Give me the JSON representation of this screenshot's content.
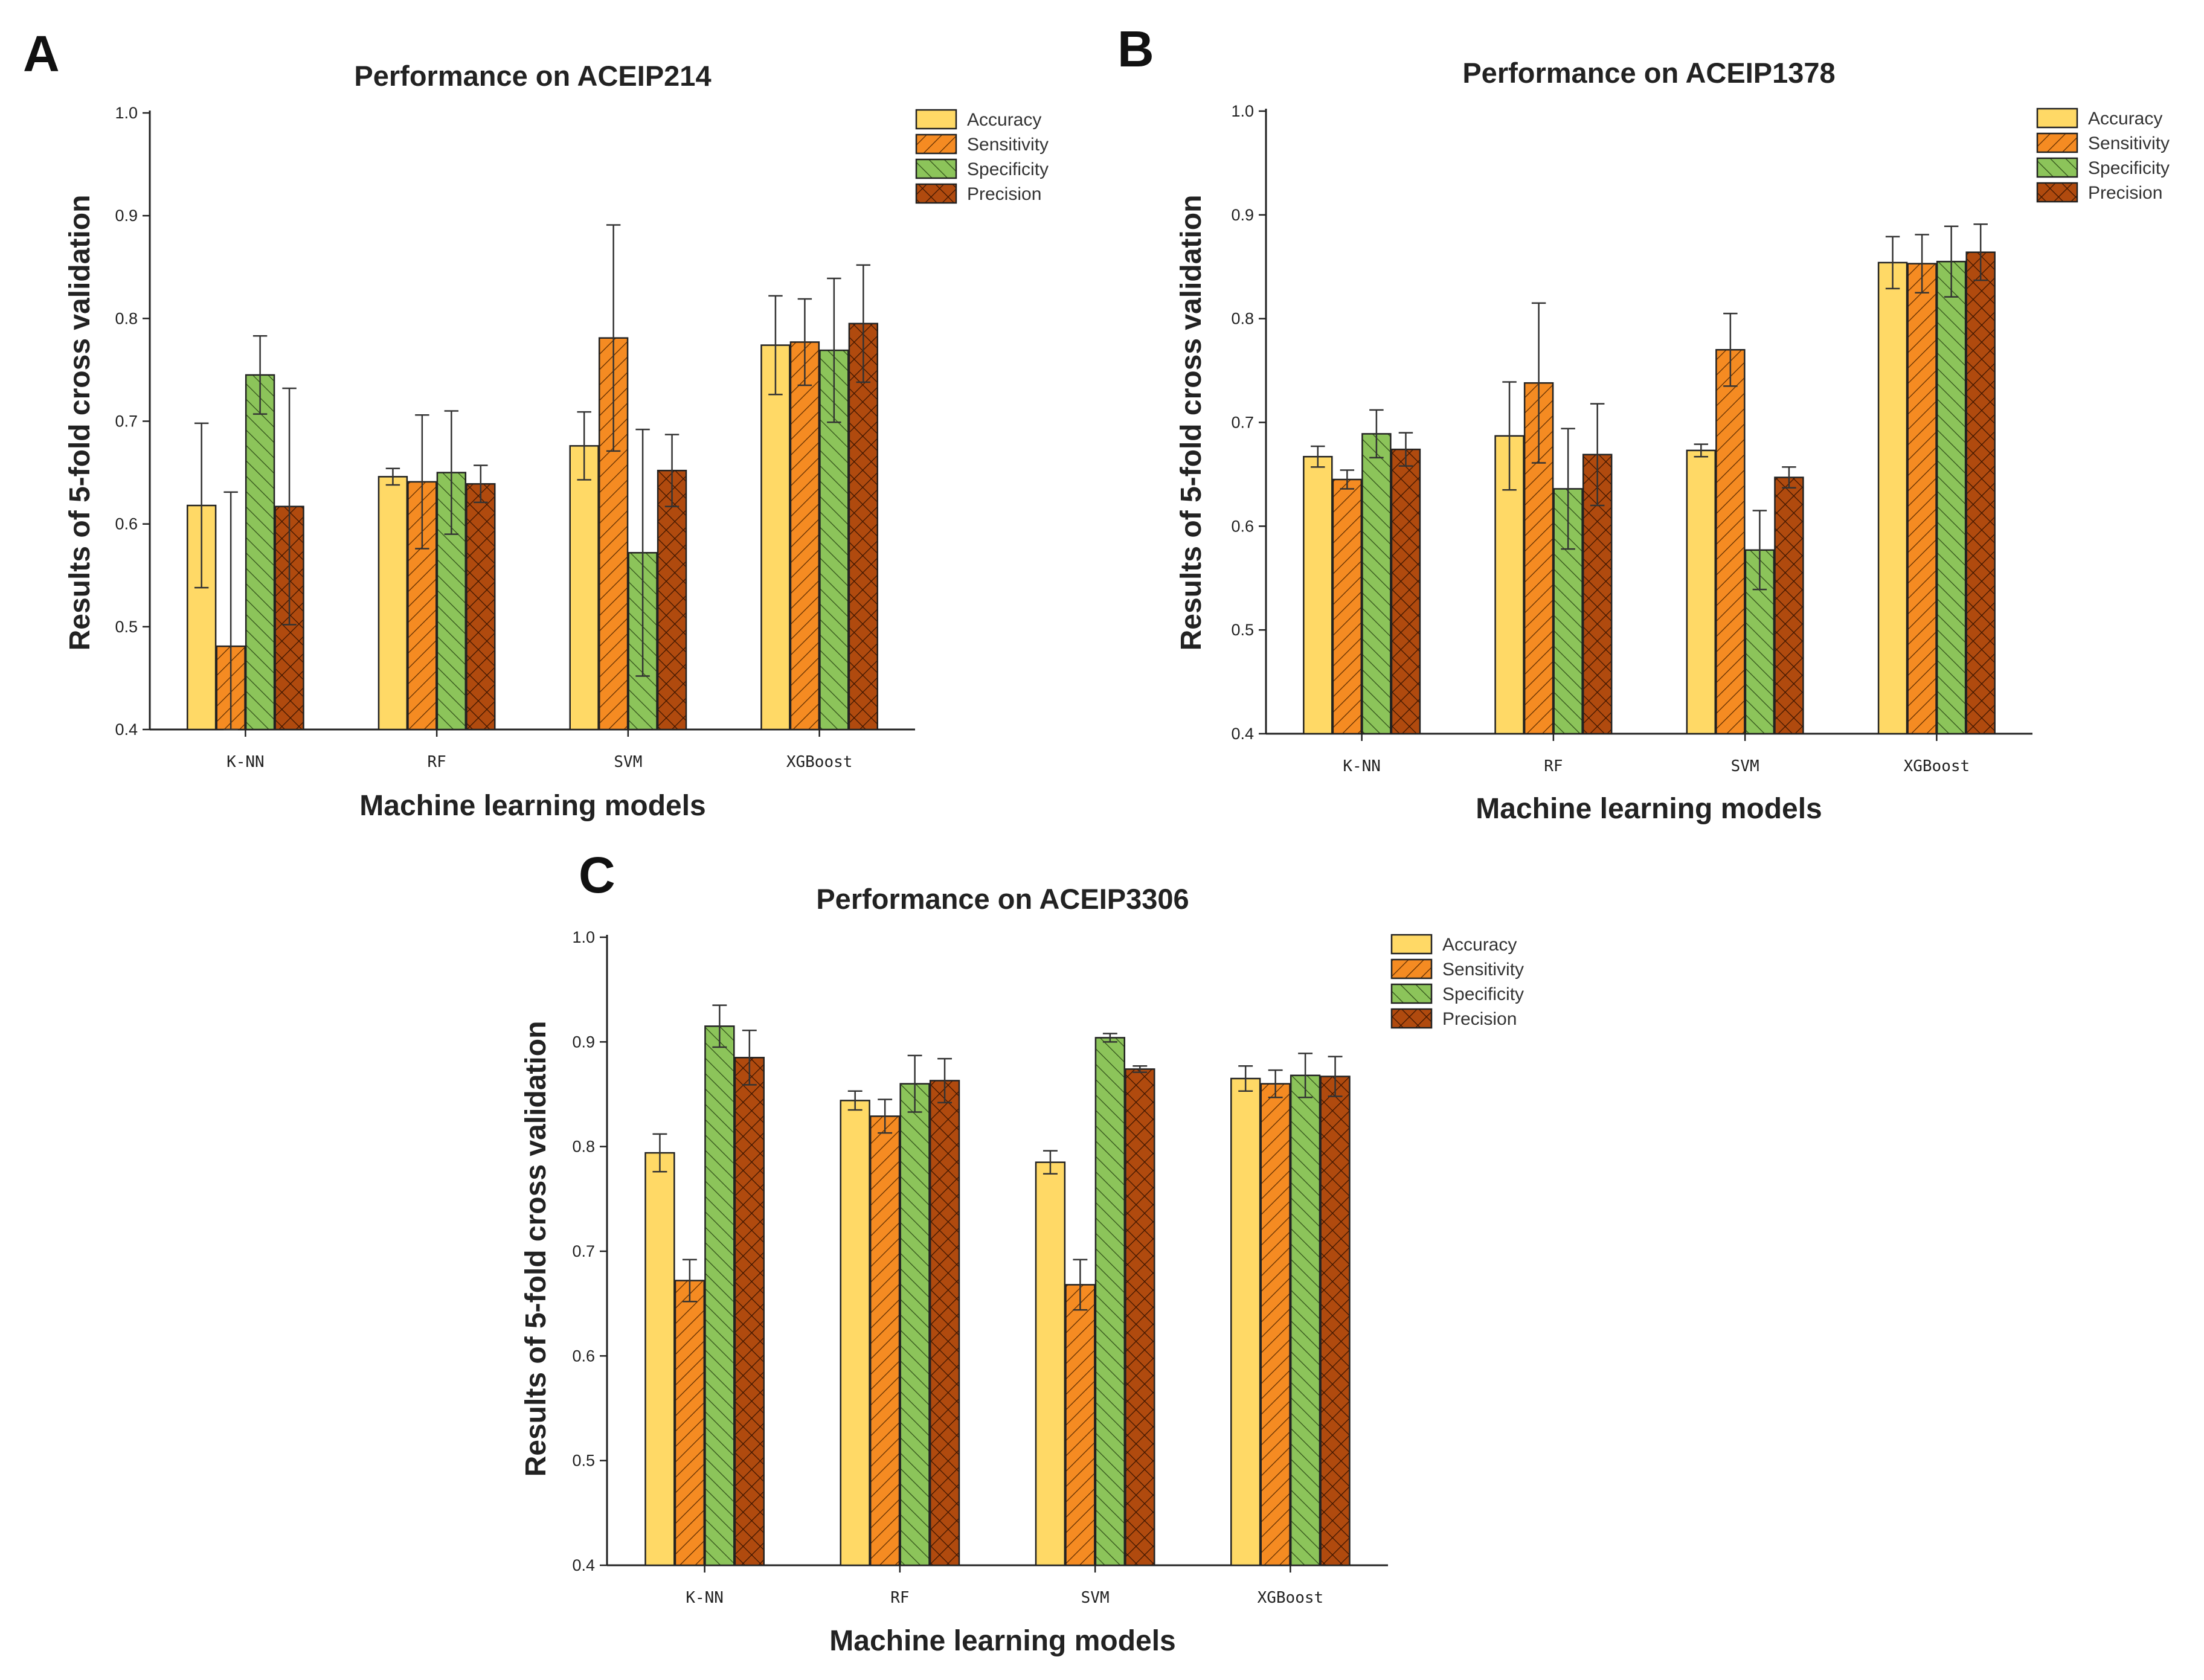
{
  "colors": {
    "accuracy": "#FFD966",
    "sensitivity": "#F58B22",
    "specificity": "#8CC45A",
    "precision": "#B04A0E"
  },
  "chart_data": [
    {
      "panel": "A",
      "type": "bar",
      "title": "Performance on ACEIP214",
      "xlabel": "Machine learning models",
      "ylabel": "Results of 5-fold cross validation",
      "ylim": [
        0.4,
        1.0
      ],
      "yticks": [
        "0.4",
        "0.5",
        "0.6",
        "0.7",
        "0.8",
        "0.9",
        "1.0"
      ],
      "categories": [
        "K-NN",
        "RF",
        "SVM",
        "XGBoost"
      ],
      "legend_position": "top-right",
      "series": [
        {
          "name": "Accuracy",
          "key": "accuracy",
          "values": [
            0.618,
            0.646,
            0.676,
            0.774
          ],
          "errors": [
            0.08,
            0.008,
            0.033,
            0.048
          ]
        },
        {
          "name": "Sensitivity",
          "key": "sensitivity",
          "values": [
            0.481,
            0.641,
            0.781,
            0.777
          ],
          "errors": [
            0.15,
            0.065,
            0.11,
            0.042
          ]
        },
        {
          "name": "Specificity",
          "key": "specificity",
          "values": [
            0.745,
            0.65,
            0.572,
            0.769
          ],
          "errors": [
            0.038,
            0.06,
            0.12,
            0.07
          ]
        },
        {
          "name": "Precision",
          "key": "precision",
          "values": [
            0.617,
            0.639,
            0.652,
            0.795
          ],
          "errors": [
            0.115,
            0.018,
            0.035,
            0.057
          ]
        }
      ]
    },
    {
      "panel": "B",
      "type": "bar",
      "title": "Performance on ACEIP1378",
      "xlabel": "Machine learning models",
      "ylabel": "Results of 5-fold cross validation",
      "ylim": [
        0.4,
        1.0
      ],
      "yticks": [
        "0.4",
        "0.5",
        "0.6",
        "0.7",
        "0.8",
        "0.9",
        "1.0"
      ],
      "categories": [
        "K-NN",
        "RF",
        "SVM",
        "XGBoost"
      ],
      "legend_position": "top-right",
      "series": [
        {
          "name": "Accuracy",
          "key": "accuracy",
          "values": [
            0.667,
            0.687,
            0.673,
            0.854
          ],
          "errors": [
            0.01,
            0.052,
            0.006,
            0.025
          ]
        },
        {
          "name": "Sensitivity",
          "key": "sensitivity",
          "values": [
            0.645,
            0.738,
            0.77,
            0.853
          ],
          "errors": [
            0.009,
            0.077,
            0.035,
            0.028
          ]
        },
        {
          "name": "Specificity",
          "key": "specificity",
          "values": [
            0.689,
            0.636,
            0.577,
            0.855
          ],
          "errors": [
            0.023,
            0.058,
            0.038,
            0.034
          ]
        },
        {
          "name": "Precision",
          "key": "precision",
          "values": [
            0.674,
            0.669,
            0.647,
            0.864
          ],
          "errors": [
            0.016,
            0.049,
            0.01,
            0.027
          ]
        }
      ]
    },
    {
      "panel": "C",
      "type": "bar",
      "title": "Performance on ACEIP3306",
      "xlabel": "Machine learning models",
      "ylabel": "Results of 5-fold cross validation",
      "ylim": [
        0.4,
        1.0
      ],
      "yticks": [
        "0.4",
        "0.5",
        "0.6",
        "0.7",
        "0.8",
        "0.9",
        "1.0"
      ],
      "categories": [
        "K-NN",
        "RF",
        "SVM",
        "XGBoost"
      ],
      "legend_position": "top-right",
      "series": [
        {
          "name": "Accuracy",
          "key": "accuracy",
          "values": [
            0.794,
            0.844,
            0.785,
            0.865
          ],
          "errors": [
            0.018,
            0.009,
            0.011,
            0.012
          ]
        },
        {
          "name": "Sensitivity",
          "key": "sensitivity",
          "values": [
            0.672,
            0.829,
            0.668,
            0.86
          ],
          "errors": [
            0.02,
            0.016,
            0.024,
            0.013
          ]
        },
        {
          "name": "Specificity",
          "key": "specificity",
          "values": [
            0.915,
            0.86,
            0.904,
            0.868
          ],
          "errors": [
            0.02,
            0.027,
            0.004,
            0.021
          ]
        },
        {
          "name": "Precision",
          "key": "precision",
          "values": [
            0.885,
            0.863,
            0.874,
            0.867
          ],
          "errors": [
            0.026,
            0.021,
            0.003,
            0.019
          ]
        }
      ]
    }
  ]
}
